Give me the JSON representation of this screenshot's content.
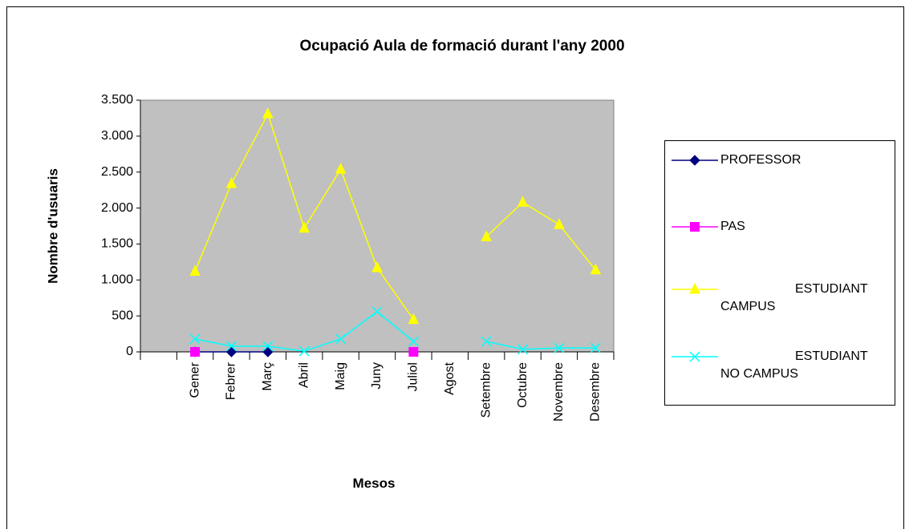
{
  "chart_data": {
    "type": "line",
    "title": "Ocupació Aula de formació durant l'any 2000",
    "y_label": "Nombre d'usuaris",
    "x_label": "Mesos",
    "categories": [
      null,
      "Gener",
      "Febrer",
      "Març",
      "Abril",
      "Maig",
      "Juny",
      "Juliol",
      "Agost",
      "Setembre",
      "Octubre",
      "Novembre",
      "Desembre"
    ],
    "series": [
      {
        "name": "PROFESSOR",
        "color": "#000080",
        "marker": "diamond",
        "values": [
          null,
          0,
          0,
          0,
          null,
          null,
          null,
          null,
          null,
          null,
          null,
          null,
          null
        ]
      },
      {
        "name": "PAS",
        "color": "#ff00ff",
        "marker": "square",
        "values": [
          null,
          0,
          null,
          null,
          null,
          null,
          null,
          0,
          null,
          null,
          null,
          null,
          null
        ]
      },
      {
        "name": "ESTUDIANT CAMPUS",
        "color": "#ffff00",
        "marker": "triangle",
        "values": [
          null,
          1120,
          2340,
          3310,
          1720,
          2540,
          1170,
          450,
          null,
          1600,
          2080,
          1770,
          1140
        ]
      },
      {
        "name": "ESTUDIANT NO CAMPUS",
        "color": "#00ffff",
        "marker": "x",
        "values": [
          null,
          180,
          80,
          80,
          10,
          180,
          560,
          145,
          null,
          145,
          35,
          55,
          55
        ]
      }
    ],
    "ylim": [
      0,
      3500
    ],
    "yticks": [
      0,
      500,
      {
        "value": 1000,
        "label": "1.000"
      },
      {
        "value": 1500,
        "label": "1.500"
      },
      {
        "value": 2000,
        "label": "2.000"
      },
      {
        "value": 2500,
        "label": "2.500"
      },
      {
        "value": 3000,
        "label": "3.000"
      },
      {
        "value": 3500,
        "label": "3.500"
      }
    ],
    "grid": false,
    "legend": "right"
  }
}
